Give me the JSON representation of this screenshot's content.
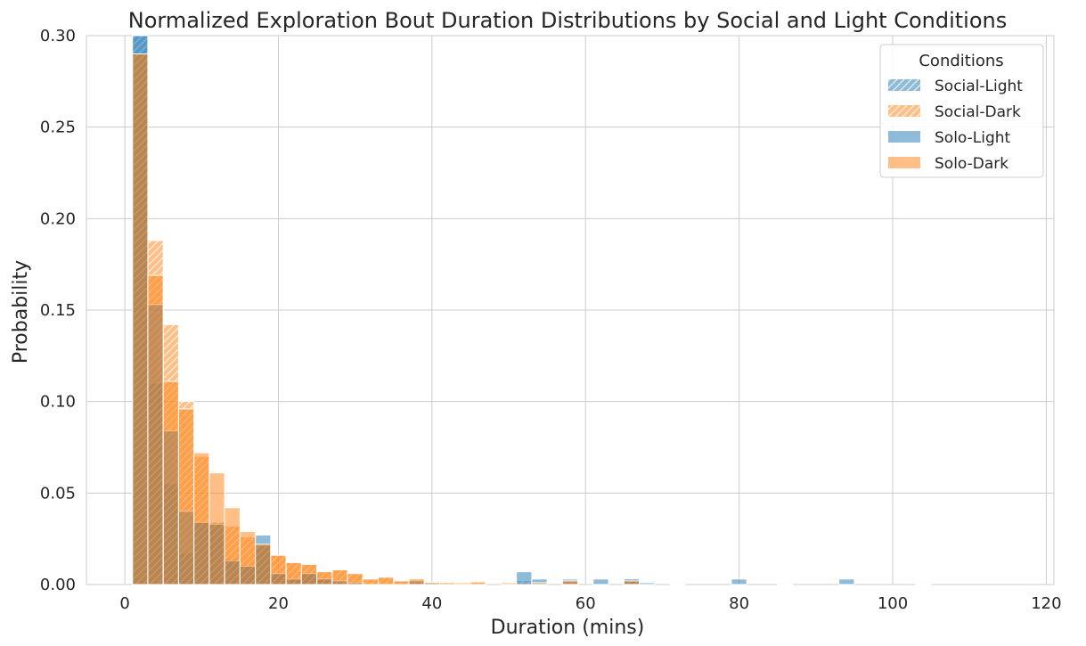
{
  "chart_data": {
    "type": "bar",
    "subtype": "overlaid histogram",
    "title": "Normalized Exploration Bout Duration Distributions by Social and Light Conditions",
    "xlabel": "Duration (mins)",
    "ylabel": "Probability",
    "xlim": [
      -5,
      121
    ],
    "ylim": [
      0,
      0.3
    ],
    "xticks": [
      0,
      20,
      40,
      60,
      80,
      100,
      120
    ],
    "yticks": [
      "0.00",
      "0.05",
      "0.10",
      "0.15",
      "0.20",
      "0.25",
      "0.30"
    ],
    "grid": true,
    "bin_start": 1,
    "bin_width": 2,
    "legend": {
      "title": "Conditions",
      "placement": "top-right"
    },
    "series": [
      {
        "name": "Social-Light",
        "color": "#1f77b4",
        "hatch": true,
        "values": [
          0.31,
          0.11,
          0.055,
          0.017,
          0.034,
          0.034,
          0.014,
          0.01,
          0.021,
          0.006,
          0.003,
          0.006,
          0.003,
          0.002,
          0.001,
          0.0,
          0.0,
          0.0,
          0.001
        ],
        "extra": [
          [
            51,
            0.002
          ],
          [
            65,
            0.003
          ]
        ]
      },
      {
        "name": "Social-Dark",
        "color": "#ff7f0e",
        "hatch": true,
        "values": [
          0.29,
          0.188,
          0.142,
          0.1,
          0.07,
          0.034,
          0.032,
          0.026,
          0.022,
          0.016,
          0.012,
          0.011,
          0.007,
          0.008,
          0.006,
          0.003,
          0.004,
          0.002,
          0.003,
          0.001,
          0.001
        ],
        "extra": [
          [
            45,
            0.001
          ],
          [
            51,
            0.001
          ],
          [
            57,
            0.002
          ],
          [
            65,
            0.002
          ]
        ]
      },
      {
        "name": "Solo-Light",
        "color": "#1f77b4",
        "hatch": false,
        "values": [
          0.3,
          0.153,
          0.084,
          0.04,
          0.034,
          0.033,
          0.013,
          0.01,
          0.027,
          0.006,
          0.003,
          0.006,
          0.003,
          0.002,
          0.001,
          0.0,
          0.0,
          0.0,
          0.002,
          0.001
        ],
        "extra": [
          [
            51,
            0.007
          ],
          [
            53,
            0.003
          ],
          [
            57,
            0.003
          ],
          [
            61,
            0.003
          ],
          [
            65,
            0.003
          ],
          [
            67,
            0.001
          ],
          [
            71,
            0.0005
          ],
          [
            79,
            0.003
          ],
          [
            85,
            0.0005
          ],
          [
            93,
            0.003
          ],
          [
            103,
            0.0005
          ]
        ]
      },
      {
        "name": "Solo-Dark",
        "color": "#ff7f0e",
        "hatch": false,
        "values": [
          0.29,
          0.169,
          0.111,
          0.096,
          0.072,
          0.061,
          0.042,
          0.029,
          0.022,
          0.016,
          0.012,
          0.011,
          0.007,
          0.008,
          0.006,
          0.003,
          0.004,
          0.002,
          0.003,
          0.001,
          0.001
        ],
        "extra": [
          [
            43,
            0.001
          ],
          [
            45,
            0.0015
          ],
          [
            49,
            0.001
          ],
          [
            53,
            0.001
          ],
          [
            57,
            0.002
          ],
          [
            65,
            0.002
          ]
        ]
      }
    ]
  }
}
